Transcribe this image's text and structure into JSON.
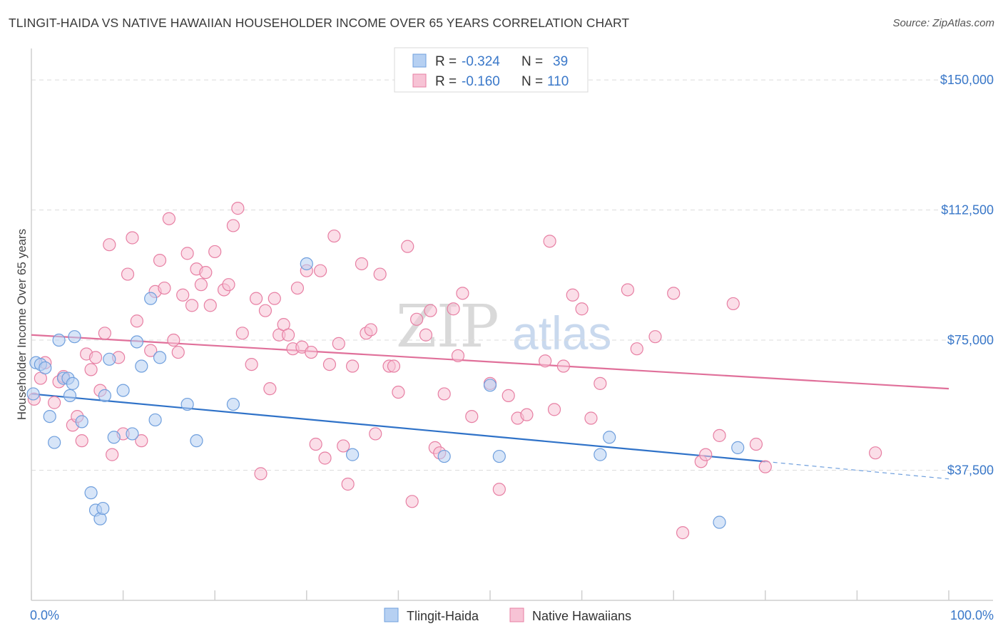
{
  "title": "TLINGIT-HAIDA VS NATIVE HAWAIIAN HOUSEHOLDER INCOME OVER 65 YEARS CORRELATION CHART",
  "source": "Source: ZipAtlas.com",
  "watermark": {
    "zip": "ZIP",
    "atlas": "atlas"
  },
  "legend": {
    "r_label": "R =",
    "n_label": "N =",
    "rows": [
      {
        "r": "-0.324",
        "n": "39"
      },
      {
        "r": "-0.160",
        "n": "110"
      }
    ]
  },
  "chart_data": {
    "type": "scatter",
    "title": "TLINGIT-HAIDA VS NATIVE HAWAIIAN HOUSEHOLDER INCOME OVER 65 YEARS CORRELATION CHART",
    "xlabel": "",
    "ylabel": "Householder Income Over 65 years",
    "xlim": [
      0,
      100
    ],
    "ylim": [
      0,
      157000
    ],
    "x_tick_labels": [
      "0.0%",
      "100.0%"
    ],
    "y_ticks": [
      37500,
      75000,
      112500,
      150000
    ],
    "y_tick_labels": [
      "$37,500",
      "$75,000",
      "$112,500",
      "$150,000"
    ],
    "grid": true,
    "series": [
      {
        "name": "Tlingit-Haida",
        "color": "#6f9fdd",
        "fill": "#b6d0f2",
        "r": -0.324,
        "n": 39,
        "trend": {
          "x0": 0,
          "y0": 59500,
          "x1": 80,
          "y1": 40000,
          "dash_to": 100,
          "dash_y": 35000
        },
        "points": [
          [
            0.2,
            59500
          ],
          [
            0.5,
            68500
          ],
          [
            1,
            68000
          ],
          [
            1.5,
            67000
          ],
          [
            2,
            53000
          ],
          [
            2.5,
            45500
          ],
          [
            3,
            75000
          ],
          [
            3.5,
            64000
          ],
          [
            4,
            64000
          ],
          [
            4.2,
            59000
          ],
          [
            4.5,
            62500
          ],
          [
            4.7,
            76000
          ],
          [
            5.5,
            51500
          ],
          [
            6.5,
            31000
          ],
          [
            7,
            26000
          ],
          [
            7.5,
            23500
          ],
          [
            7.8,
            26500
          ],
          [
            8,
            59000
          ],
          [
            8.5,
            69500
          ],
          [
            9,
            47000
          ],
          [
            10,
            60500
          ],
          [
            11,
            48000
          ],
          [
            11.5,
            74500
          ],
          [
            12,
            67500
          ],
          [
            13,
            87000
          ],
          [
            13.5,
            52000
          ],
          [
            14,
            70000
          ],
          [
            17,
            56500
          ],
          [
            18,
            46000
          ],
          [
            22,
            56500
          ],
          [
            30,
            97000
          ],
          [
            35,
            42000
          ],
          [
            45,
            41500
          ],
          [
            50,
            62000
          ],
          [
            51,
            41500
          ],
          [
            62,
            42000
          ],
          [
            63,
            47000
          ],
          [
            75,
            22500
          ],
          [
            77,
            44000
          ]
        ]
      },
      {
        "name": "Native Hawaiians",
        "color": "#e77fa3",
        "fill": "#f7c3d5",
        "r": -0.16,
        "n": 110,
        "trend": {
          "x0": 0,
          "y0": 76500,
          "x1": 100,
          "y1": 61000
        },
        "points": [
          [
            0.3,
            58000
          ],
          [
            1,
            64000
          ],
          [
            1.5,
            68500
          ],
          [
            2.5,
            57000
          ],
          [
            3,
            63000
          ],
          [
            3.5,
            64500
          ],
          [
            4.5,
            50500
          ],
          [
            5,
            53000
          ],
          [
            5.5,
            46000
          ],
          [
            6,
            71000
          ],
          [
            6.5,
            66500
          ],
          [
            7,
            70000
          ],
          [
            7.5,
            60500
          ],
          [
            8,
            77000
          ],
          [
            8.5,
            102500
          ],
          [
            8.8,
            42000
          ],
          [
            9.5,
            70000
          ],
          [
            10,
            48000
          ],
          [
            10.5,
            94000
          ],
          [
            11,
            104500
          ],
          [
            11.5,
            80500
          ],
          [
            12,
            46000
          ],
          [
            13,
            72000
          ],
          [
            13.5,
            89000
          ],
          [
            14,
            98000
          ],
          [
            14.5,
            90000
          ],
          [
            15,
            110000
          ],
          [
            15.5,
            75000
          ],
          [
            16,
            71500
          ],
          [
            16.5,
            88000
          ],
          [
            17,
            100000
          ],
          [
            17.5,
            85000
          ],
          [
            18,
            95500
          ],
          [
            18.5,
            91000
          ],
          [
            19,
            94500
          ],
          [
            19.5,
            85000
          ],
          [
            20,
            100500
          ],
          [
            21,
            89500
          ],
          [
            21.5,
            91000
          ],
          [
            22,
            108000
          ],
          [
            22.5,
            113000
          ],
          [
            23,
            77000
          ],
          [
            24,
            68000
          ],
          [
            24.5,
            87000
          ],
          [
            25,
            36500
          ],
          [
            25.5,
            83500
          ],
          [
            26,
            61000
          ],
          [
            26.5,
            87000
          ],
          [
            27,
            76500
          ],
          [
            27.5,
            79500
          ],
          [
            28,
            76500
          ],
          [
            28.5,
            72500
          ],
          [
            29,
            90000
          ],
          [
            29.5,
            73000
          ],
          [
            30,
            95000
          ],
          [
            30.5,
            71500
          ],
          [
            31,
            45000
          ],
          [
            31.5,
            95000
          ],
          [
            32,
            41000
          ],
          [
            32.5,
            68000
          ],
          [
            33,
            105000
          ],
          [
            33.5,
            74000
          ],
          [
            34,
            44500
          ],
          [
            34.5,
            33500
          ],
          [
            35,
            67500
          ],
          [
            36,
            97000
          ],
          [
            36.5,
            77000
          ],
          [
            37,
            78000
          ],
          [
            37.5,
            48000
          ],
          [
            38,
            94000
          ],
          [
            39,
            67500
          ],
          [
            39.5,
            67500
          ],
          [
            40,
            60000
          ],
          [
            41,
            102000
          ],
          [
            41.5,
            28500
          ],
          [
            42,
            81000
          ],
          [
            43,
            76500
          ],
          [
            43.5,
            83500
          ],
          [
            44,
            44000
          ],
          [
            44.5,
            42500
          ],
          [
            45,
            59500
          ],
          [
            46,
            84000
          ],
          [
            46.5,
            70500
          ],
          [
            47,
            88500
          ],
          [
            48,
            53000
          ],
          [
            50,
            62500
          ],
          [
            51,
            32000
          ],
          [
            52,
            59000
          ],
          [
            53,
            52500
          ],
          [
            54,
            53500
          ],
          [
            56,
            69000
          ],
          [
            56.5,
            103500
          ],
          [
            57,
            55000
          ],
          [
            58,
            67500
          ],
          [
            59,
            88000
          ],
          [
            60,
            84000
          ],
          [
            61,
            52500
          ],
          [
            62,
            62500
          ],
          [
            65,
            89500
          ],
          [
            66,
            72500
          ],
          [
            68,
            76000
          ],
          [
            70,
            88500
          ],
          [
            71,
            19500
          ],
          [
            73,
            40000
          ],
          [
            73.5,
            42000
          ],
          [
            75,
            47500
          ],
          [
            76.5,
            85500
          ],
          [
            79,
            45000
          ],
          [
            80,
            38500
          ],
          [
            92,
            42500
          ]
        ]
      }
    ]
  },
  "bottom_legend": [
    "Tlingit-Haida",
    "Native Hawaiians"
  ]
}
